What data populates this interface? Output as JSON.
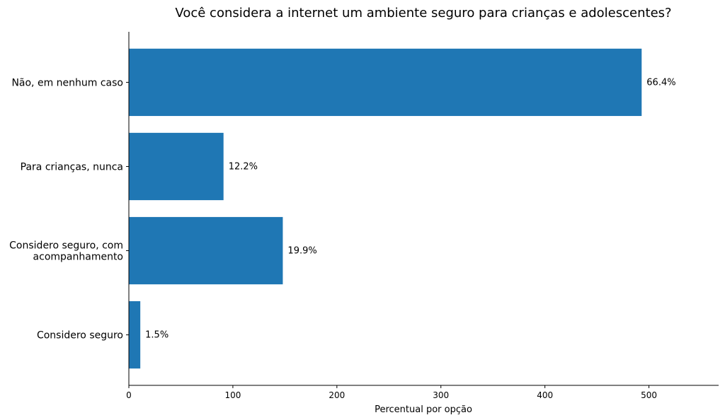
{
  "chart_data": {
    "type": "bar",
    "orientation": "horizontal",
    "title": "Você considera a internet um ambiente seguro para crianças e adolescentes?",
    "xlabel": "Percentual por opção",
    "ylabel": "",
    "categories": [
      "Não, em nenhum caso",
      "Para crianças, nunca",
      "Considero seguro, com\nacompanhamento",
      "Considero seguro"
    ],
    "values": [
      493,
      91,
      148,
      11
    ],
    "data_labels": [
      "66.4%",
      "12.2%",
      "19.9%",
      "1.5%"
    ],
    "xlim": [
      0,
      567
    ],
    "xticks": [
      0,
      100,
      200,
      300,
      400,
      500
    ],
    "xtick_labels": [
      "0",
      "100",
      "200",
      "300",
      "400",
      "500"
    ],
    "grid": false,
    "bar_color": "#1f77b4"
  }
}
